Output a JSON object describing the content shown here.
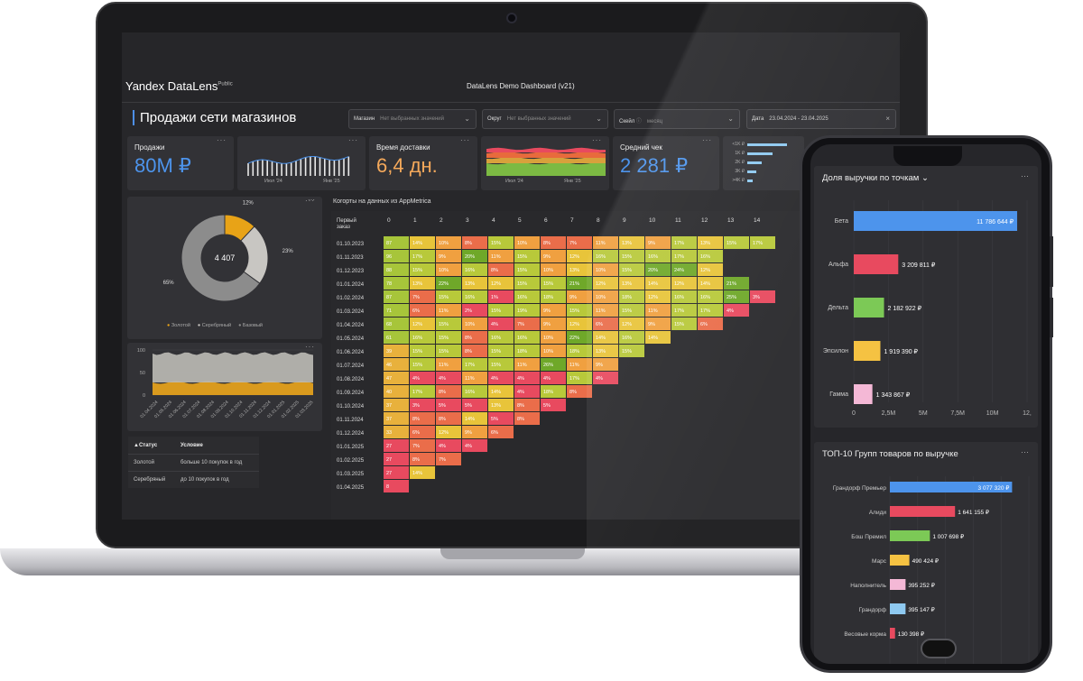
{
  "app": {
    "logo": "Yandex DataLens",
    "logo_sup": "Public",
    "dashboard_title": "DataLens Demo Dashboard (v21)"
  },
  "page_title": "Продажи сети магазинов",
  "filters": [
    {
      "label": "Магазин",
      "value": "Нет выбранных значений"
    },
    {
      "label": "Округ",
      "value": "Нет выбранных значений"
    },
    {
      "label": "Скейл",
      "value": "месяц"
    },
    {
      "label": "Дата",
      "value": "23.04.2024 - 23.04.2025"
    }
  ],
  "kpis": [
    {
      "label": "Продажи",
      "value": "80M ₽",
      "color": "#4d94ec"
    },
    {
      "label": "Время доставки",
      "value": "6,4 дн.",
      "color": "#f5a95b"
    },
    {
      "label": "Средний чек",
      "value": "2 281 ₽",
      "color": "#4d94ec"
    }
  ],
  "spark_ticks": {
    "a": [
      "Июл '24",
      "Янв '25"
    ],
    "b": [
      "Июл '24",
      "Янв '25"
    ]
  },
  "mini_bar_labels": [
    "<1K ₽",
    "1K ₽",
    "2K ₽",
    "3K ₽",
    ">4K ₽"
  ],
  "donut": {
    "center": "4 407",
    "slices": [
      {
        "name": "Золотой",
        "value": 12,
        "label": "12%",
        "color": "#e8a317"
      },
      {
        "name": "Серебряный",
        "value": 23,
        "label": "23%",
        "color": "#c8c6c2"
      },
      {
        "name": "Базовый",
        "value": 65,
        "label": "65%",
        "color": "#8c8c8c"
      }
    ]
  },
  "area_axis": {
    "y": [
      "100",
      "50",
      "0"
    ],
    "x": [
      "01.04.2024",
      "01.05.2024",
      "01.06.2024",
      "01.07.2024",
      "01.08.2024",
      "01.09.2024",
      "01.10.2024",
      "01.11.2024",
      "01.12.2024",
      "01.01.2025",
      "01.02.2025",
      "01.03.2025"
    ]
  },
  "status_table": {
    "headers": [
      "Статус",
      "Условие"
    ],
    "rows": [
      [
        "Золотой",
        "больше 10 покупок в год"
      ],
      [
        "Серебряный",
        "до 10 покупок в год"
      ]
    ]
  },
  "cohort": {
    "title": "Когорты на данных из AppMetrica",
    "first_col": "Первый заказ",
    "cols": [
      "0",
      "1",
      "2",
      "3",
      "4",
      "5",
      "6",
      "7",
      "8",
      "9",
      "10",
      "11",
      "12",
      "13",
      "14"
    ],
    "rows": [
      {
        "d": "01.10.2023",
        "v": [
          "87",
          "14%",
          "10%",
          "8%",
          "15%",
          "10%",
          "8%",
          "7%",
          "11%",
          "13%",
          "9%",
          "17%",
          "13%",
          "15%",
          "17%"
        ]
      },
      {
        "d": "01.11.2023",
        "v": [
          "96",
          "17%",
          "9%",
          "20%",
          "11%",
          "15%",
          "9%",
          "12%",
          "16%",
          "15%",
          "16%",
          "17%",
          "16%",
          "",
          ""
        ]
      },
      {
        "d": "01.12.2023",
        "v": [
          "88",
          "15%",
          "10%",
          "16%",
          "8%",
          "15%",
          "10%",
          "13%",
          "10%",
          "15%",
          "20%",
          "24%",
          "12%",
          "",
          ""
        ]
      },
      {
        "d": "01.01.2024",
        "v": [
          "78",
          "13%",
          "22%",
          "13%",
          "12%",
          "15%",
          "15%",
          "21%",
          "12%",
          "13%",
          "14%",
          "12%",
          "14%",
          "21%",
          ""
        ]
      },
      {
        "d": "01.02.2024",
        "v": [
          "87",
          "7%",
          "15%",
          "16%",
          "1%",
          "16%",
          "18%",
          "9%",
          "10%",
          "18%",
          "12%",
          "16%",
          "16%",
          "25%",
          "3%"
        ]
      },
      {
        "d": "01.03.2024",
        "v": [
          "71",
          "6%",
          "11%",
          "2%",
          "15%",
          "19%",
          "9%",
          "15%",
          "11%",
          "15%",
          "11%",
          "17%",
          "17%",
          "4%",
          ""
        ]
      },
      {
        "d": "01.04.2024",
        "v": [
          "68",
          "12%",
          "15%",
          "10%",
          "4%",
          "7%",
          "9%",
          "12%",
          "6%",
          "12%",
          "9%",
          "15%",
          "6%",
          "",
          ""
        ]
      },
      {
        "d": "01.05.2024",
        "v": [
          "61",
          "16%",
          "15%",
          "8%",
          "16%",
          "16%",
          "10%",
          "22%",
          "14%",
          "16%",
          "14%",
          "",
          "",
          "",
          ""
        ]
      },
      {
        "d": "01.06.2024",
        "v": [
          "39",
          "15%",
          "15%",
          "8%",
          "15%",
          "18%",
          "10%",
          "18%",
          "13%",
          "15%",
          "",
          "",
          "",
          "",
          ""
        ]
      },
      {
        "d": "01.07.2024",
        "v": [
          "46",
          "15%",
          "11%",
          "17%",
          "15%",
          "11%",
          "26%",
          "11%",
          "9%",
          "",
          "",
          "",
          "",
          "",
          ""
        ]
      },
      {
        "d": "01.08.2024",
        "v": [
          "47",
          "4%",
          "4%",
          "11%",
          "4%",
          "4%",
          "4%",
          "17%",
          "4%",
          "",
          "",
          "",
          "",
          "",
          ""
        ]
      },
      {
        "d": "01.09.2024",
        "v": [
          "40",
          "17%",
          "8%",
          "16%",
          "14%",
          "4%",
          "18%",
          "8%",
          "",
          "",
          "",
          "",
          "",
          "",
          ""
        ]
      },
      {
        "d": "01.10.2024",
        "v": [
          "37",
          "3%",
          "5%",
          "5%",
          "13%",
          "8%",
          "5%",
          "",
          "",
          "",
          "",
          "",
          "",
          "",
          ""
        ]
      },
      {
        "d": "01.11.2024",
        "v": [
          "37",
          "8%",
          "8%",
          "14%",
          "5%",
          "8%",
          "",
          "",
          "",
          "",
          "",
          "",
          "",
          "",
          ""
        ]
      },
      {
        "d": "01.12.2024",
        "v": [
          "33",
          "6%",
          "12%",
          "9%",
          "6%",
          "",
          "",
          "",
          "",
          "",
          "",
          "",
          "",
          "",
          ""
        ]
      },
      {
        "d": "01.01.2025",
        "v": [
          "27",
          "7%",
          "4%",
          "4%",
          "",
          "",
          "",
          "",
          "",
          "",
          "",
          "",
          "",
          "",
          ""
        ]
      },
      {
        "d": "01.02.2025",
        "v": [
          "27",
          "8%",
          "7%",
          "",
          "",
          "",
          "",
          "",
          "",
          "",
          "",
          "",
          "",
          "",
          ""
        ]
      },
      {
        "d": "01.03.2025",
        "v": [
          "27",
          "14%",
          "",
          "",
          "",
          "",
          "",
          "",
          "",
          "",
          "",
          "",
          "",
          "",
          ""
        ]
      },
      {
        "d": "01.04.2025",
        "v": [
          "8",
          "",
          "",
          "",
          "",
          "",
          "",
          "",
          "",
          "",
          "",
          "",
          "",
          "",
          ""
        ]
      }
    ]
  },
  "phone": {
    "chart1": {
      "title": "Доля выручки по точкам",
      "labels": [
        "Бета",
        "Альфа",
        "Дельта",
        "Эпсилон",
        "Гамма"
      ],
      "values": [
        11786644,
        3209811,
        2182922,
        1919390,
        1343867
      ],
      "value_labels": [
        "11 786 644 ₽",
        "3 209 811 ₽",
        "2 182 922 ₽",
        "1 919 390 ₽",
        "1 343 867 ₽"
      ],
      "colors": [
        "#4d94ec",
        "#e84a5f",
        "#7cc956",
        "#f5c242",
        "#f4b8d6"
      ],
      "axis": [
        "0",
        "2,5M",
        "5M",
        "7,5M",
        "10M",
        "12,"
      ]
    },
    "chart2": {
      "title": "ТОП-10 Групп товаров по выручке",
      "labels": [
        "Грандорф Премьер",
        "Алиди",
        "Бош Премил",
        "Марс",
        "Наполнитель",
        "Грандорф",
        "Весовые корма"
      ],
      "values": [
        3077320,
        1641155,
        1007698,
        490424,
        395252,
        395147,
        130398
      ],
      "value_labels": [
        "3 077 320 ₽",
        "1 641 155 ₽",
        "1 007 698 ₽",
        "490 424 ₽",
        "395 252 ₽",
        "395 147 ₽",
        "130 398 ₽"
      ],
      "colors": [
        "#4d94ec",
        "#e84a5f",
        "#7cc956",
        "#f5c242",
        "#f4b8d6",
        "#8ec9f0",
        "#e84a5f"
      ]
    }
  }
}
